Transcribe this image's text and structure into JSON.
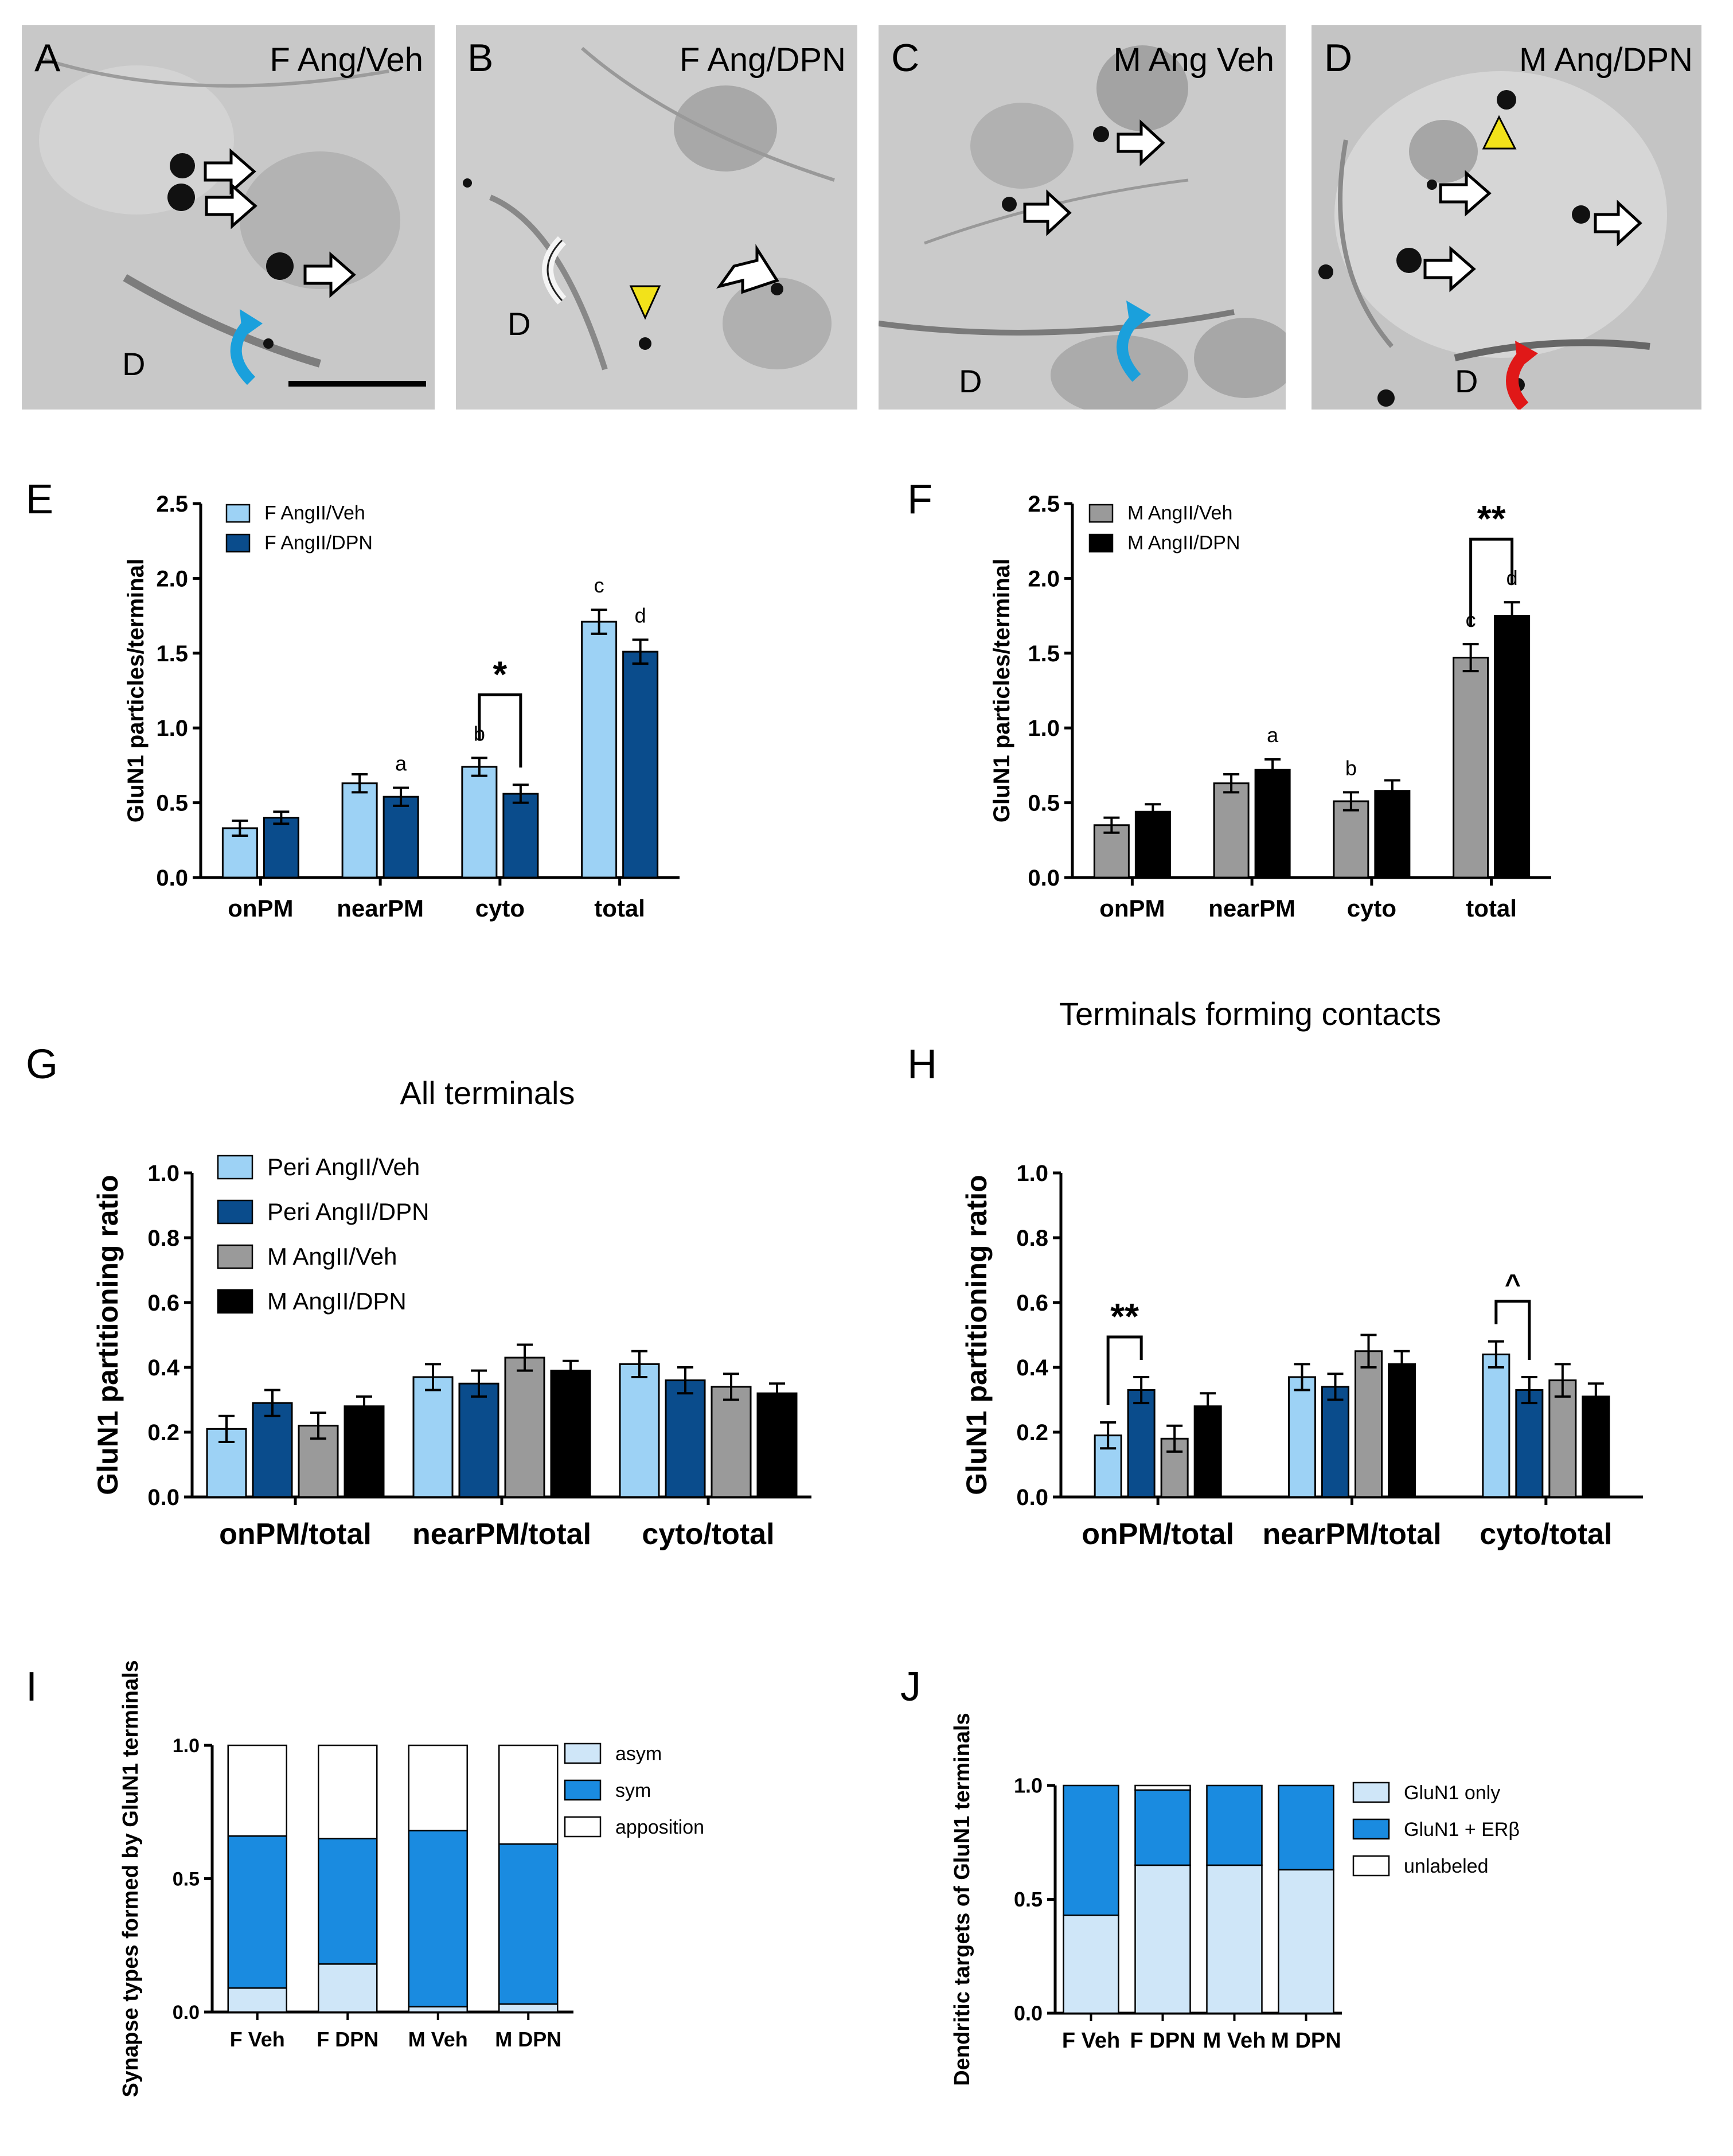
{
  "colors": {
    "light_blue": "#9dd2f5",
    "dark_blue": "#0a4c8c",
    "grey": "#9a9a9a",
    "black": "#000000",
    "pale_blue": "#cfe6f8",
    "bright_blue": "#1a8be0",
    "white": "#ffffff",
    "em_bg": "#c9c9c9",
    "blue_arrow": "#1aa0dc",
    "red_arrow": "#e01818",
    "yellow_arrowhead": "#f2e21a"
  },
  "panels": {
    "A": {
      "letter": "A",
      "label": "F Ang/Veh",
      "d_label": "D"
    },
    "B": {
      "letter": "B",
      "label": "F Ang/DPN",
      "d_label": "D"
    },
    "C": {
      "letter": "C",
      "label": "M Ang Veh",
      "d_label": "D"
    },
    "D": {
      "letter": "D",
      "label": "M Ang/DPN",
      "d_label": "D"
    },
    "E": {
      "letter": "E"
    },
    "F": {
      "letter": "F"
    },
    "G": {
      "letter": "G"
    },
    "H": {
      "letter": "H"
    },
    "I": {
      "letter": "I"
    },
    "J": {
      "letter": "J"
    }
  },
  "chart_data": [
    {
      "id": "E",
      "type": "bar",
      "title": "",
      "xlabel": "",
      "ylabel": "GluN1 particles/terminal",
      "ylim": [
        0,
        2.5
      ],
      "yticks": [
        "0.0",
        "0.5",
        "1.0",
        "1.5",
        "2.0",
        "2.5"
      ],
      "categories": [
        "onPM",
        "nearPM",
        "cyto",
        "total"
      ],
      "series": [
        {
          "name": "F AngII/Veh",
          "color": "#9dd2f5",
          "values": [
            0.33,
            0.63,
            0.74,
            1.71
          ],
          "errors": [
            0.05,
            0.06,
            0.06,
            0.08
          ],
          "letters": [
            "",
            "",
            "b",
            "c"
          ]
        },
        {
          "name": "F AngII/DPN",
          "color": "#0a4c8c",
          "values": [
            0.4,
            0.54,
            0.56,
            1.51
          ],
          "errors": [
            0.04,
            0.06,
            0.06,
            0.08
          ],
          "letters": [
            "",
            "a",
            "",
            "d"
          ]
        }
      ],
      "significance": [
        {
          "label": "*",
          "category": "cyto"
        }
      ],
      "legend": "top-left"
    },
    {
      "id": "F",
      "type": "bar",
      "title": "",
      "xlabel": "",
      "ylabel": "GluN1 particles/terminal",
      "ylim": [
        0,
        2.5
      ],
      "yticks": [
        "0.0",
        "0.5",
        "1.0",
        "1.5",
        "2.0",
        "2.5"
      ],
      "categories": [
        "onPM",
        "nearPM",
        "cyto",
        "total"
      ],
      "series": [
        {
          "name": "M AngII/Veh",
          "color": "#9a9a9a",
          "values": [
            0.35,
            0.63,
            0.51,
            1.47
          ],
          "errors": [
            0.05,
            0.06,
            0.06,
            0.09
          ],
          "letters": [
            "",
            "",
            "b",
            "c"
          ]
        },
        {
          "name": "M AngII/DPN",
          "color": "#000000",
          "values": [
            0.44,
            0.72,
            0.58,
            1.75
          ],
          "errors": [
            0.05,
            0.07,
            0.07,
            0.09
          ],
          "letters": [
            "",
            "a",
            "",
            "d"
          ]
        }
      ],
      "significance": [
        {
          "label": "**",
          "category": "total"
        }
      ],
      "legend": "top-left"
    },
    {
      "id": "G",
      "type": "bar",
      "title": "All terminals",
      "xlabel": "",
      "ylabel": "GluN1 partitioning ratio",
      "ylim": [
        0,
        1.0
      ],
      "yticks": [
        "0.0",
        "0.2",
        "0.4",
        "0.6",
        "0.8",
        "1.0"
      ],
      "categories": [
        "onPM/total",
        "nearPM/total",
        "cyto/total"
      ],
      "series": [
        {
          "name": "Peri AngII/Veh",
          "color": "#9dd2f5",
          "values": [
            0.21,
            0.37,
            0.41
          ],
          "errors": [
            0.04,
            0.04,
            0.04
          ]
        },
        {
          "name": "Peri AngII/DPN",
          "color": "#0a4c8c",
          "values": [
            0.29,
            0.35,
            0.36
          ],
          "errors": [
            0.04,
            0.04,
            0.04
          ]
        },
        {
          "name": "M AngII/Veh",
          "color": "#9a9a9a",
          "values": [
            0.22,
            0.43,
            0.34
          ],
          "errors": [
            0.04,
            0.04,
            0.04
          ]
        },
        {
          "name": "M AngII/DPN",
          "color": "#000000",
          "values": [
            0.28,
            0.39,
            0.32
          ],
          "errors": [
            0.03,
            0.03,
            0.03
          ]
        }
      ],
      "legend": "top-left"
    },
    {
      "id": "H",
      "type": "bar",
      "title": "Terminals forming contacts",
      "xlabel": "",
      "ylabel": "GluN1 partitioning ratio",
      "ylim": [
        0,
        1.0
      ],
      "yticks": [
        "0.0",
        "0.2",
        "0.4",
        "0.6",
        "0.8",
        "1.0"
      ],
      "categories": [
        "onPM/total",
        "nearPM/total",
        "cyto/total"
      ],
      "series": [
        {
          "name": "Peri AngII/Veh",
          "color": "#9dd2f5",
          "values": [
            0.19,
            0.37,
            0.44
          ],
          "errors": [
            0.04,
            0.04,
            0.04
          ]
        },
        {
          "name": "Peri AngII/DPN",
          "color": "#0a4c8c",
          "values": [
            0.33,
            0.34,
            0.33
          ],
          "errors": [
            0.04,
            0.04,
            0.04
          ]
        },
        {
          "name": "M AngII/Veh",
          "color": "#9a9a9a",
          "values": [
            0.18,
            0.45,
            0.36
          ],
          "errors": [
            0.04,
            0.05,
            0.05
          ]
        },
        {
          "name": "M AngII/DPN",
          "color": "#000000",
          "values": [
            0.28,
            0.41,
            0.31
          ],
          "errors": [
            0.04,
            0.04,
            0.04
          ]
        }
      ],
      "significance": [
        {
          "label": "**",
          "category": "onPM/total"
        },
        {
          "label": "^",
          "category": "cyto/total"
        }
      ]
    },
    {
      "id": "I",
      "type": "bar",
      "stacked": true,
      "title": "",
      "xlabel": "",
      "ylabel": "Synapse types formed by GluN1 terminals",
      "ylim": [
        0,
        1.0
      ],
      "yticks": [
        "0.0",
        "0.5",
        "1.0"
      ],
      "categories": [
        "F Veh",
        "F DPN",
        "M Veh",
        "M DPN"
      ],
      "series": [
        {
          "name": "asym",
          "color": "#cfe6f8",
          "values": [
            0.09,
            0.18,
            0.02,
            0.03
          ]
        },
        {
          "name": "sym",
          "color": "#1a8be0",
          "values": [
            0.57,
            0.47,
            0.66,
            0.6
          ]
        },
        {
          "name": "apposition",
          "color": "#ffffff",
          "values": [
            0.34,
            0.35,
            0.32,
            0.37
          ]
        }
      ],
      "legend": "right"
    },
    {
      "id": "J",
      "type": "bar",
      "stacked": true,
      "title": "",
      "xlabel": "",
      "ylabel": "Dendritic targets of GluN1 terminals",
      "ylim": [
        0,
        1.0
      ],
      "yticks": [
        "0.0",
        "0.5",
        "1.0"
      ],
      "categories": [
        "F Veh",
        "F DPN",
        "M Veh",
        "M DPN"
      ],
      "series": [
        {
          "name": "GluN1 only",
          "color": "#cfe6f8",
          "values": [
            0.43,
            0.65,
            0.65,
            0.63
          ]
        },
        {
          "name": "GluN1 + ERβ",
          "color": "#1a8be0",
          "values": [
            0.57,
            0.33,
            0.35,
            0.37
          ]
        },
        {
          "name": "unlabeled",
          "color": "#ffffff",
          "values": [
            0.0,
            0.02,
            0.0,
            0.0
          ]
        }
      ],
      "legend": "right"
    }
  ]
}
